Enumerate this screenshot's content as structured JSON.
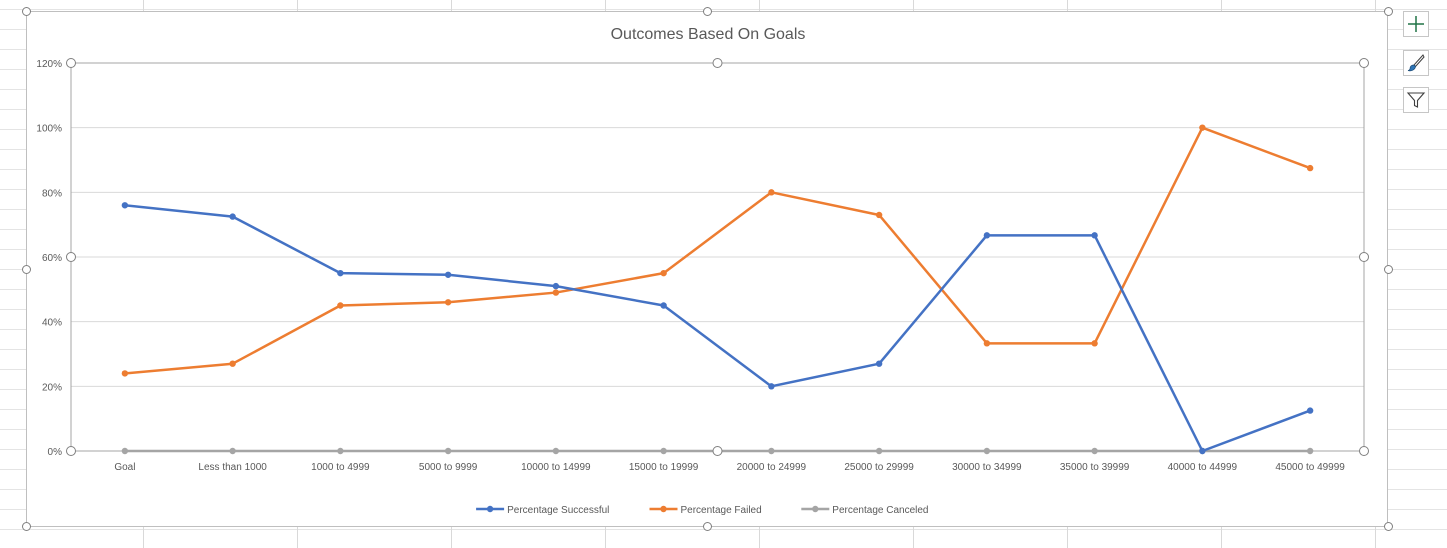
{
  "chart_data": {
    "type": "line",
    "title": "Outcomes Based On Goals",
    "xlabel": "",
    "ylabel": "",
    "categories": [
      "Goal",
      "Less than 1000",
      "1000 to 4999",
      "5000 to 9999",
      "10000 to 14999",
      "15000 to 19999",
      "20000 to 24999",
      "25000 to 29999",
      "30000 to 34999",
      "35000 to 39999",
      "40000 to 44999",
      "45000 to 49999"
    ],
    "series": [
      {
        "name": "Percentage Successful",
        "color": "#4472c4",
        "values": [
          0.76,
          0.725,
          0.55,
          0.545,
          0.51,
          0.45,
          0.2,
          0.27,
          0.667,
          0.667,
          0.0,
          0.125
        ]
      },
      {
        "name": "Percentage Failed",
        "color": "#ed7d31",
        "values": [
          0.24,
          0.27,
          0.45,
          0.46,
          0.49,
          0.55,
          0.8,
          0.73,
          0.333,
          0.333,
          1.0,
          0.875
        ]
      },
      {
        "name": "Percentage Canceled",
        "color": "#a5a5a5",
        "values": [
          0,
          0,
          0,
          0,
          0,
          0,
          0,
          0,
          0,
          0,
          0,
          0
        ]
      }
    ],
    "ylim": [
      0,
      1.2
    ],
    "yticks": [
      0,
      0.2,
      0.4,
      0.6,
      0.8,
      1.0,
      1.2
    ],
    "ytick_labels": [
      "0%",
      "20%",
      "40%",
      "60%",
      "80%",
      "100%",
      "120%"
    ],
    "grid": true,
    "legend": "bottom"
  },
  "icons": {
    "chart_elements": "plus-icon",
    "chart_styles": "brush-icon",
    "chart_filters": "funnel-icon",
    "accent": "#217346"
  }
}
